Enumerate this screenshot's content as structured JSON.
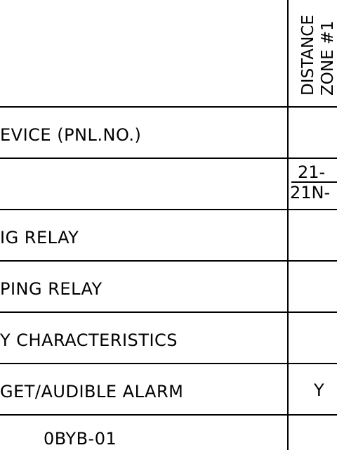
{
  "column_header": {
    "line1": "DISTANCE",
    "line2": "ZONE #1"
  },
  "rows": [
    {
      "label": "EVICE (PNL.NO.)",
      "value": ""
    },
    {
      "label": "",
      "value_top": "21-",
      "value_bottom": "21N-"
    },
    {
      "label": "IG RELAY",
      "value": ""
    },
    {
      "label": "PING RELAY",
      "value": ""
    },
    {
      "label": "Y CHARACTERISTICS",
      "value": ""
    },
    {
      "label": "GET/AUDIBLE ALARM",
      "value": "Y"
    },
    {
      "label": "0BYB-01",
      "value": ""
    }
  ]
}
